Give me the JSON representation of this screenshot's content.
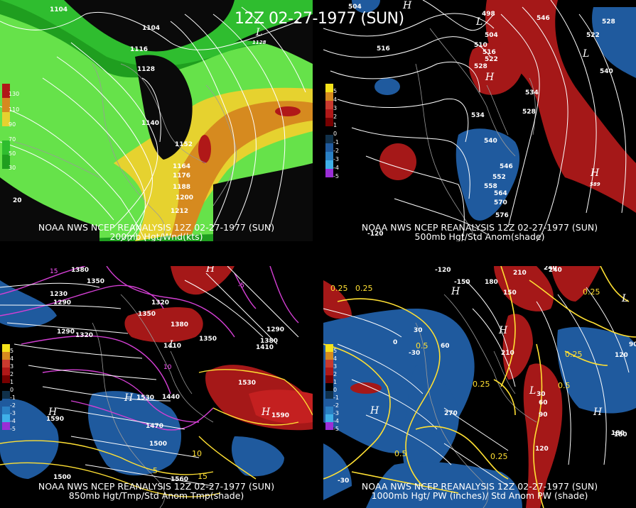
{
  "header": {
    "title": "12Z 02-27-1977 (SUN)"
  },
  "panels": [
    {
      "caption_line1": "NOAA NWS NCEP REANALYSIS 12Z 02-27-1977 (SUN)",
      "caption_line2": "200mb Hgt/Wnd(kts)",
      "colorbar_labels": [
        "130",
        "110",
        "90",
        "70",
        "50",
        "30"
      ],
      "contour_labels": [
        "1104",
        "1104",
        "1116",
        "1128",
        "1140",
        "1152",
        "1164",
        "1176",
        "1188",
        "1200",
        "1212",
        "1128",
        "20"
      ],
      "lon_labels": []
    },
    {
      "caption_line1": "NOAA NWS NCEP REANALYSIS 12Z 02-27-1977 (SUN)",
      "caption_line2": "500mb Hgt/Std Anom(shade)",
      "colorbar_labels": [
        "5",
        "4",
        "3",
        "2",
        "1",
        "0",
        "-1",
        "-2",
        "-3",
        "-4",
        "-5"
      ],
      "contour_labels": [
        "504",
        "498",
        "504",
        "516",
        "510",
        "516",
        "522",
        "528",
        "546",
        "522",
        "528",
        "534",
        "540",
        "546",
        "552",
        "558",
        "564",
        "570",
        "576",
        "540",
        "534",
        "528",
        "589",
        "20"
      ],
      "lon_labels": [
        "-120"
      ]
    },
    {
      "caption_line1": "NOAA NWS NCEP REANALYSIS 12Z 02-27-1977 (SUN)",
      "caption_line2": "850mb Hgt/Tmp/Std Anom Tmp(shade)",
      "colorbar_labels": [
        "5",
        "4",
        "3",
        "2",
        "1",
        "0",
        "-1",
        "-2",
        "-3",
        "-4",
        "-5"
      ],
      "contour_labels": [
        "1380",
        "1350",
        "1230",
        "1290",
        "1320",
        "1350",
        "1380",
        "1410",
        "1320",
        "1290",
        "1410",
        "1380",
        "1290",
        "1350",
        "1440",
        "1470",
        "1500",
        "1530",
        "1530",
        "1590",
        "1500",
        "1590",
        "1560",
        "15",
        "10",
        "5",
        "15",
        "10",
        "-5"
      ],
      "lon_labels": []
    },
    {
      "caption_line1": "NOAA NWS NCEP REANALYSIS 12Z 02-27-1977 (SUN)",
      "caption_line2": "1000mb Hgt/ PW (inches)/ Std Anom PW (shade)",
      "colorbar_labels": [
        "5",
        "4",
        "3",
        "2",
        "1",
        "0",
        "-1",
        "-2",
        "-3",
        "-4",
        "-5"
      ],
      "contour_labels": [
        "-120",
        "-150",
        "180",
        "210",
        "240",
        "30",
        "0",
        "-30",
        "60",
        "90",
        "120",
        "30",
        "60",
        "90",
        "120",
        "150",
        "180",
        "210",
        "240",
        "270",
        "0.25",
        "0.5",
        "0.25",
        "0.25",
        "0.5",
        "0.25",
        "0.5",
        "0.25",
        "0.25",
        "-180",
        "-30"
      ],
      "lon_labels": []
    }
  ],
  "colors": {
    "green_light": "#66e24a",
    "green_dark": "#1f9e1f",
    "yellow": "#e6d22f",
    "orange": "#d68a1f",
    "red": "#b01818",
    "blue": "#1f5a9e",
    "magenta": "#d43fd4",
    "contour_yellow": "#ffe033"
  }
}
